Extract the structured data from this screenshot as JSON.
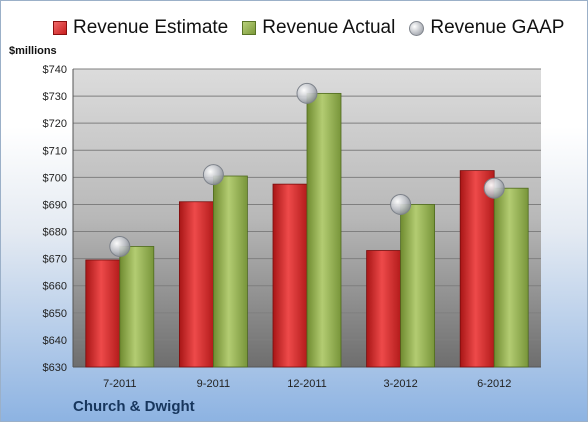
{
  "legend": {
    "estimate": "Revenue Estimate",
    "actual": "Revenue Actual",
    "gaap": "Revenue GAAP"
  },
  "unit_label": "$millions",
  "company": "Church & Dwight",
  "colors": {
    "estimate": "#d42a2a",
    "actual": "#94b04a",
    "gaap": "#b9bcc2",
    "company_text": "#17365d"
  },
  "chart_data": {
    "type": "bar",
    "title": "",
    "xlabel": "",
    "ylabel": "$millions",
    "categories": [
      "7-2011",
      "9-2011",
      "12-2011",
      "3-2012",
      "6-2012"
    ],
    "series": [
      {
        "name": "Revenue Estimate",
        "type": "bar",
        "values": [
          669.5,
          691,
          697.5,
          673,
          702.5
        ]
      },
      {
        "name": "Revenue Actual",
        "type": "bar",
        "values": [
          674.5,
          700.5,
          731,
          690,
          696
        ]
      },
      {
        "name": "Revenue GAAP",
        "type": "scatter",
        "values": [
          674.5,
          701,
          731,
          690,
          696
        ]
      }
    ],
    "ylim": [
      630,
      740
    ],
    "yticks": [
      630,
      640,
      650,
      660,
      670,
      680,
      690,
      700,
      710,
      720,
      730,
      740
    ],
    "ytick_labels": [
      "$630",
      "$640",
      "$650",
      "$660",
      "$670",
      "$680",
      "$690",
      "$700",
      "$710",
      "$720",
      "$730",
      "$740"
    ],
    "grid": true,
    "legend_position": "top"
  }
}
